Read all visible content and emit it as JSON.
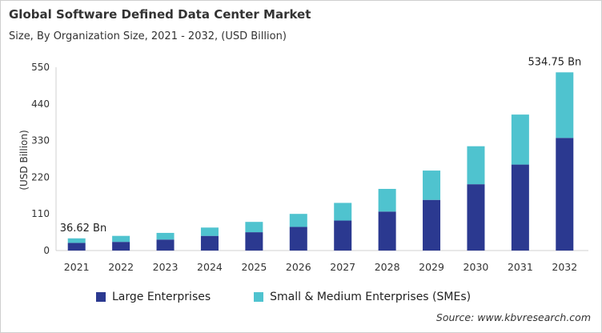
{
  "title": "Global Software Defined Data Center Market",
  "subtitle": "Size, By Organization Size, 2021 - 2032, (USD Billion)",
  "source": "Source: www.kbvresearch.com",
  "colors": {
    "large": "#2b3990",
    "sme": "#4fc3cf"
  },
  "chart_data": {
    "type": "bar",
    "stacked": true,
    "categories": [
      "2021",
      "2022",
      "2023",
      "2024",
      "2025",
      "2026",
      "2027",
      "2028",
      "2029",
      "2030",
      "2031",
      "2032"
    ],
    "series": [
      {
        "name": "Large Enterprises",
        "values": [
          23,
          26,
          33,
          44,
          55,
          71,
          90,
          117,
          152,
          199,
          258,
          338
        ]
      },
      {
        "name": "Small & Medium Enterprises (SMEs)",
        "values": [
          13.62,
          18,
          20,
          25,
          31,
          39,
          53,
          68,
          88,
          114,
          150,
          196.75
        ]
      }
    ],
    "ylabel": "(USD Billion)",
    "xlabel": "",
    "ylim": [
      0,
      550
    ],
    "yticks": [
      "0",
      "110",
      "220",
      "330",
      "440",
      "550"
    ],
    "grid": false,
    "legend_position": "bottom",
    "annotations": [
      {
        "category": "2021",
        "text": "36.62 Bn"
      },
      {
        "category": "2032",
        "text": "534.75 Bn"
      }
    ]
  }
}
